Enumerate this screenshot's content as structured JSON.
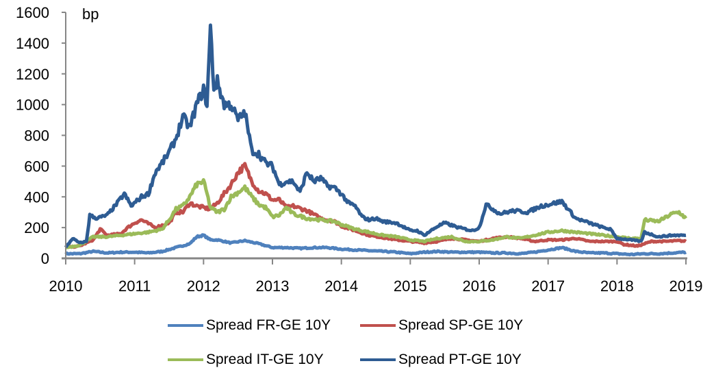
{
  "chart_data": {
    "type": "line",
    "title": "",
    "unit_label": "bp",
    "xlabel": "",
    "ylabel": "bp",
    "xlim": [
      2010,
      2019.05
    ],
    "ylim": [
      0,
      1600
    ],
    "yticks": [
      0,
      200,
      400,
      600,
      800,
      1000,
      1200,
      1400,
      1600
    ],
    "xticks": [
      2010,
      2011,
      2012,
      2013,
      2014,
      2015,
      2016,
      2017,
      2018,
      2019
    ],
    "grid": false,
    "legend_position": "bottom",
    "series": [
      {
        "name": "Spread FR-GE 10Y",
        "color": "#4F81BD",
        "points": [
          [
            2010.0,
            30
          ],
          [
            2010.2,
            30
          ],
          [
            2010.4,
            45
          ],
          [
            2010.6,
            35
          ],
          [
            2010.8,
            40
          ],
          [
            2011.0,
            40
          ],
          [
            2011.2,
            35
          ],
          [
            2011.4,
            45
          ],
          [
            2011.6,
            70
          ],
          [
            2011.8,
            95
          ],
          [
            2011.9,
            140
          ],
          [
            2012.0,
            150
          ],
          [
            2012.1,
            120
          ],
          [
            2012.2,
            120
          ],
          [
            2012.4,
            100
          ],
          [
            2012.6,
            115
          ],
          [
            2012.8,
            95
          ],
          [
            2013.0,
            70
          ],
          [
            2013.2,
            70
          ],
          [
            2013.4,
            65
          ],
          [
            2013.6,
            70
          ],
          [
            2013.8,
            70
          ],
          [
            2014.0,
            60
          ],
          [
            2014.2,
            55
          ],
          [
            2014.4,
            50
          ],
          [
            2014.6,
            45
          ],
          [
            2014.8,
            40
          ],
          [
            2015.0,
            30
          ],
          [
            2015.2,
            40
          ],
          [
            2015.4,
            45
          ],
          [
            2015.6,
            40
          ],
          [
            2015.8,
            40
          ],
          [
            2016.0,
            40
          ],
          [
            2016.2,
            35
          ],
          [
            2016.4,
            35
          ],
          [
            2016.6,
            30
          ],
          [
            2016.8,
            40
          ],
          [
            2017.0,
            55
          ],
          [
            2017.2,
            70
          ],
          [
            2017.4,
            45
          ],
          [
            2017.6,
            35
          ],
          [
            2017.8,
            35
          ],
          [
            2018.0,
            30
          ],
          [
            2018.2,
            25
          ],
          [
            2018.4,
            30
          ],
          [
            2018.6,
            30
          ],
          [
            2018.8,
            35
          ],
          [
            2019.0,
            40
          ]
        ]
      },
      {
        "name": "Spread SP-GE 10Y",
        "color": "#C0504D",
        "points": [
          [
            2010.0,
            70
          ],
          [
            2010.2,
            80
          ],
          [
            2010.4,
            120
          ],
          [
            2010.5,
            190
          ],
          [
            2010.6,
            150
          ],
          [
            2010.8,
            160
          ],
          [
            2010.9,
            200
          ],
          [
            2011.0,
            230
          ],
          [
            2011.1,
            250
          ],
          [
            2011.3,
            200
          ],
          [
            2011.5,
            230
          ],
          [
            2011.6,
            300
          ],
          [
            2011.7,
            300
          ],
          [
            2011.8,
            360
          ],
          [
            2011.9,
            340
          ],
          [
            2012.0,
            330
          ],
          [
            2012.1,
            320
          ],
          [
            2012.2,
            360
          ],
          [
            2012.3,
            420
          ],
          [
            2012.4,
            480
          ],
          [
            2012.5,
            560
          ],
          [
            2012.6,
            600
          ],
          [
            2012.7,
            500
          ],
          [
            2012.8,
            440
          ],
          [
            2012.9,
            420
          ],
          [
            2013.0,
            380
          ],
          [
            2013.1,
            380
          ],
          [
            2013.2,
            330
          ],
          [
            2013.3,
            340
          ],
          [
            2013.5,
            310
          ],
          [
            2013.7,
            260
          ],
          [
            2013.9,
            240
          ],
          [
            2014.0,
            210
          ],
          [
            2014.2,
            180
          ],
          [
            2014.4,
            150
          ],
          [
            2014.6,
            135
          ],
          [
            2014.8,
            120
          ],
          [
            2015.0,
            110
          ],
          [
            2015.2,
            100
          ],
          [
            2015.4,
            110
          ],
          [
            2015.6,
            130
          ],
          [
            2015.8,
            120
          ],
          [
            2016.0,
            110
          ],
          [
            2016.2,
            130
          ],
          [
            2016.4,
            140
          ],
          [
            2016.6,
            130
          ],
          [
            2016.8,
            110
          ],
          [
            2017.0,
            120
          ],
          [
            2017.2,
            120
          ],
          [
            2017.4,
            130
          ],
          [
            2017.6,
            110
          ],
          [
            2017.8,
            110
          ],
          [
            2018.0,
            110
          ],
          [
            2018.1,
            90
          ],
          [
            2018.3,
            80
          ],
          [
            2018.5,
            110
          ],
          [
            2018.7,
            110
          ],
          [
            2018.9,
            115
          ],
          [
            2019.0,
            110
          ]
        ]
      },
      {
        "name": "Spread IT-GE 10Y",
        "color": "#9BBB59",
        "points": [
          [
            2010.0,
            70
          ],
          [
            2010.2,
            85
          ],
          [
            2010.4,
            140
          ],
          [
            2010.6,
            140
          ],
          [
            2010.8,
            150
          ],
          [
            2011.0,
            160
          ],
          [
            2011.2,
            170
          ],
          [
            2011.4,
            190
          ],
          [
            2011.5,
            250
          ],
          [
            2011.6,
            320
          ],
          [
            2011.7,
            340
          ],
          [
            2011.8,
            400
          ],
          [
            2011.9,
            480
          ],
          [
            2012.0,
            500
          ],
          [
            2012.05,
            420
          ],
          [
            2012.1,
            330
          ],
          [
            2012.2,
            300
          ],
          [
            2012.3,
            320
          ],
          [
            2012.4,
            400
          ],
          [
            2012.5,
            430
          ],
          [
            2012.6,
            460
          ],
          [
            2012.7,
            400
          ],
          [
            2012.8,
            350
          ],
          [
            2012.9,
            330
          ],
          [
            2013.0,
            270
          ],
          [
            2013.1,
            280
          ],
          [
            2013.2,
            330
          ],
          [
            2013.3,
            290
          ],
          [
            2013.5,
            260
          ],
          [
            2013.7,
            250
          ],
          [
            2013.9,
            240
          ],
          [
            2014.0,
            220
          ],
          [
            2014.2,
            190
          ],
          [
            2014.4,
            170
          ],
          [
            2014.6,
            150
          ],
          [
            2014.8,
            140
          ],
          [
            2015.0,
            120
          ],
          [
            2015.2,
            110
          ],
          [
            2015.4,
            130
          ],
          [
            2015.6,
            140
          ],
          [
            2015.8,
            110
          ],
          [
            2016.0,
            110
          ],
          [
            2016.2,
            120
          ],
          [
            2016.4,
            140
          ],
          [
            2016.6,
            130
          ],
          [
            2016.8,
            150
          ],
          [
            2017.0,
            170
          ],
          [
            2017.2,
            180
          ],
          [
            2017.4,
            170
          ],
          [
            2017.6,
            160
          ],
          [
            2017.8,
            150
          ],
          [
            2018.0,
            140
          ],
          [
            2018.2,
            130
          ],
          [
            2018.35,
            130
          ],
          [
            2018.4,
            250
          ],
          [
            2018.6,
            240
          ],
          [
            2018.8,
            290
          ],
          [
            2018.9,
            300
          ],
          [
            2019.0,
            260
          ]
        ]
      },
      {
        "name": "Spread PT-GE 10Y",
        "color": "#2E5C93",
        "points": [
          [
            2010.0,
            70
          ],
          [
            2010.1,
            130
          ],
          [
            2010.2,
            100
          ],
          [
            2010.3,
            110
          ],
          [
            2010.35,
            280
          ],
          [
            2010.45,
            260
          ],
          [
            2010.6,
            280
          ],
          [
            2010.75,
            360
          ],
          [
            2010.85,
            420
          ],
          [
            2010.95,
            340
          ],
          [
            2011.0,
            360
          ],
          [
            2011.1,
            400
          ],
          [
            2011.2,
            420
          ],
          [
            2011.3,
            560
          ],
          [
            2011.4,
            620
          ],
          [
            2011.5,
            690
          ],
          [
            2011.6,
            780
          ],
          [
            2011.7,
            920
          ],
          [
            2011.8,
            850
          ],
          [
            2011.9,
            1000
          ],
          [
            2012.0,
            1100
          ],
          [
            2012.05,
            1000
          ],
          [
            2012.1,
            1500
          ],
          [
            2012.15,
            1100
          ],
          [
            2012.2,
            1150
          ],
          [
            2012.3,
            1000
          ],
          [
            2012.4,
            1000
          ],
          [
            2012.5,
            900
          ],
          [
            2012.6,
            950
          ],
          [
            2012.7,
            700
          ],
          [
            2012.8,
            680
          ],
          [
            2012.9,
            620
          ],
          [
            2013.0,
            600
          ],
          [
            2013.1,
            480
          ],
          [
            2013.2,
            500
          ],
          [
            2013.3,
            500
          ],
          [
            2013.4,
            430
          ],
          [
            2013.5,
            560
          ],
          [
            2013.6,
            500
          ],
          [
            2013.7,
            520
          ],
          [
            2013.8,
            470
          ],
          [
            2013.9,
            460
          ],
          [
            2014.0,
            420
          ],
          [
            2014.1,
            360
          ],
          [
            2014.2,
            340
          ],
          [
            2014.3,
            270
          ],
          [
            2014.4,
            250
          ],
          [
            2014.5,
            260
          ],
          [
            2014.6,
            240
          ],
          [
            2014.8,
            230
          ],
          [
            2015.0,
            180
          ],
          [
            2015.1,
            180
          ],
          [
            2015.2,
            150
          ],
          [
            2015.4,
            210
          ],
          [
            2015.5,
            230
          ],
          [
            2015.7,
            200
          ],
          [
            2015.9,
            180
          ],
          [
            2016.0,
            200
          ],
          [
            2016.1,
            350
          ],
          [
            2016.3,
            290
          ],
          [
            2016.5,
            310
          ],
          [
            2016.7,
            300
          ],
          [
            2016.9,
            340
          ],
          [
            2017.0,
            350
          ],
          [
            2017.2,
            370
          ],
          [
            2017.4,
            260
          ],
          [
            2017.6,
            230
          ],
          [
            2017.8,
            200
          ],
          [
            2017.9,
            190
          ],
          [
            2018.0,
            130
          ],
          [
            2018.2,
            120
          ],
          [
            2018.35,
            110
          ],
          [
            2018.4,
            170
          ],
          [
            2018.6,
            140
          ],
          [
            2018.8,
            150
          ],
          [
            2019.0,
            150
          ]
        ]
      }
    ]
  },
  "legend": {
    "items": [
      {
        "label": "Spread FR-GE 10Y",
        "color": "#4F81BD"
      },
      {
        "label": "Spread SP-GE 10Y",
        "color": "#C0504D"
      },
      {
        "label": "Spread IT-GE 10Y",
        "color": "#9BBB59"
      },
      {
        "label": "Spread PT-GE 10Y",
        "color": "#2E5C93"
      }
    ]
  }
}
